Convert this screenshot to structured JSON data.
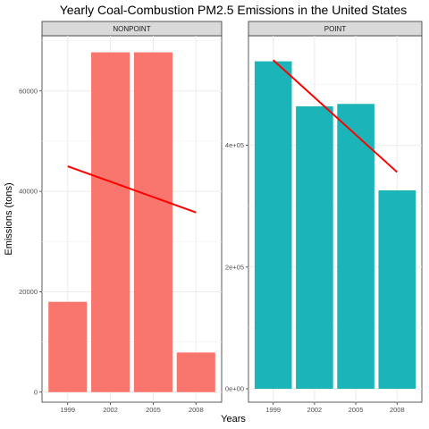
{
  "chart_data": {
    "type": "bar",
    "title": "Yearly Coal-Combustion PM2.5 Emissions in the United States",
    "xlabel": "Years",
    "ylabel": "Emissions (tons)",
    "grid": true,
    "panels": [
      {
        "name": "NONPOINT",
        "categories": [
          "1999",
          "2002",
          "2005",
          "2008"
        ],
        "values": [
          18000,
          67700,
          67700,
          7900
        ],
        "bar_color": "#F8766D",
        "ylim": [
          -2000,
          71000
        ],
        "yticks": [
          0,
          20000,
          40000,
          60000
        ],
        "ytick_labels": [
          "0",
          "20000",
          "40000",
          "60000"
        ],
        "trend": {
          "start": 45000,
          "end": 35800,
          "color": "#FF0000"
        }
      },
      {
        "name": "POINT",
        "categories": [
          "1999",
          "2002",
          "2005",
          "2008"
        ],
        "values": [
          538000,
          464000,
          468000,
          326000
        ],
        "bar_color": "#1BB4B8",
        "ylim": [
          -22000,
          580000
        ],
        "yticks": [
          0,
          200000,
          400000
        ],
        "ytick_labels": [
          "0e+00",
          "2e+05",
          "4e+05"
        ],
        "trend": {
          "start": 540000,
          "end": 356000,
          "color": "#FF0000"
        }
      }
    ]
  }
}
